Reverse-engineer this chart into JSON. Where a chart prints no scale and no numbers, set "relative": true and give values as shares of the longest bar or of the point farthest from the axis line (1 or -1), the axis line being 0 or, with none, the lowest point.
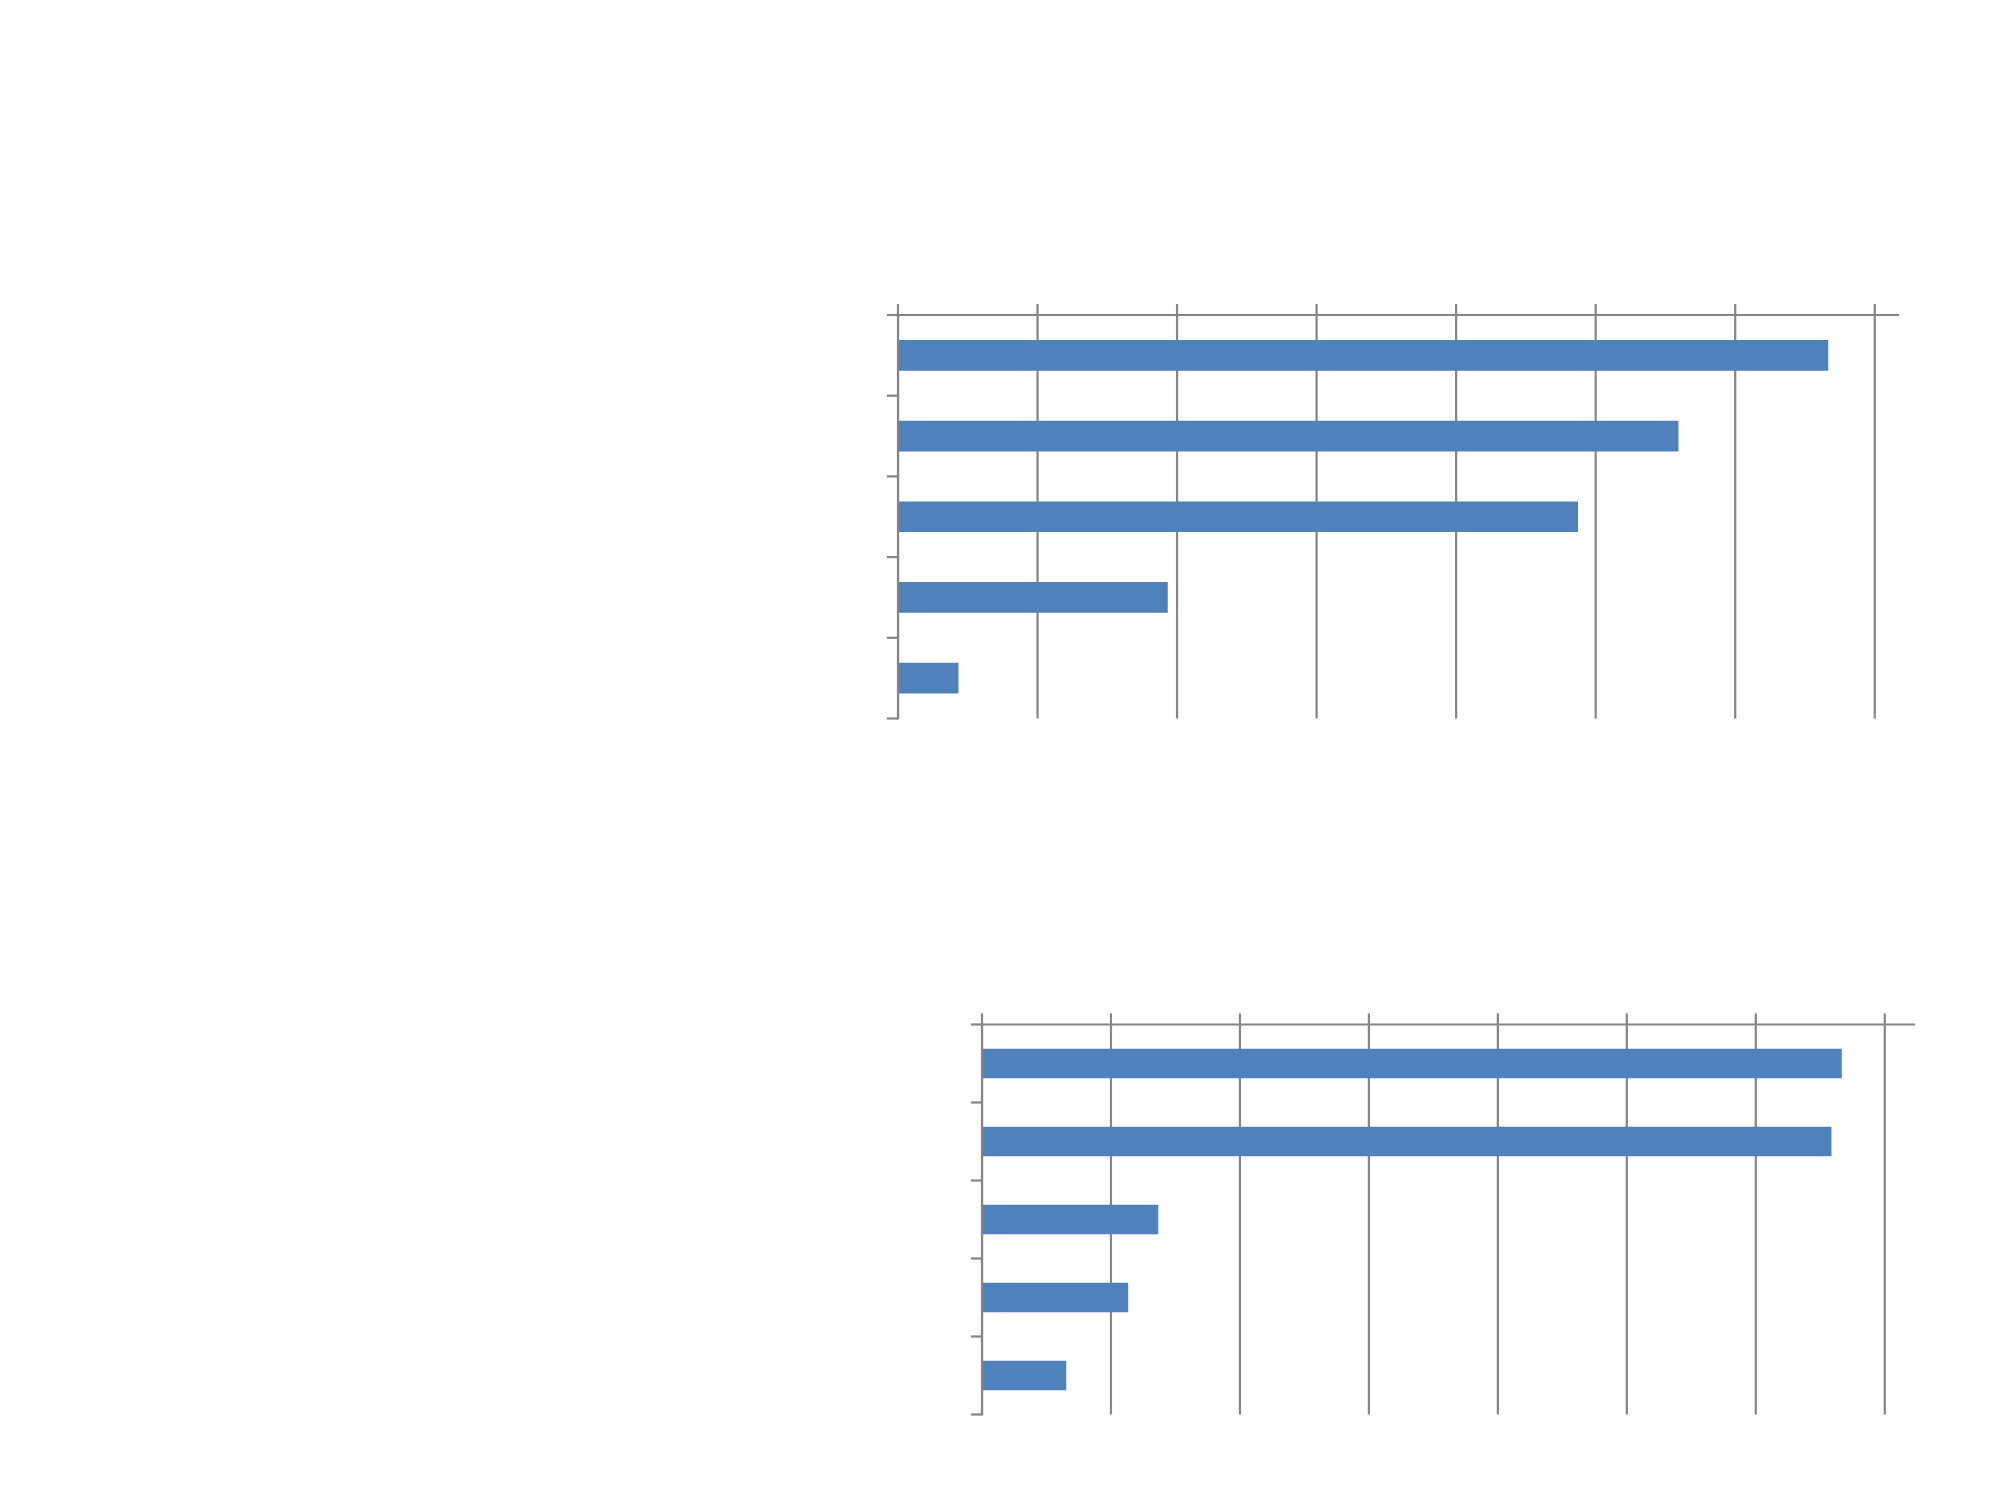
{
  "chart_data": [
    {
      "type": "bar",
      "orientation": "horizontal",
      "relative": true,
      "categories": [
        null,
        null,
        null,
        null,
        null
      ],
      "values": [
        1,
        0.839,
        0.731,
        0.29,
        0.065
      ],
      "color": "#4f81bd",
      "grid": "x",
      "tick_labels": false,
      "legend": false
    },
    {
      "type": "bar",
      "orientation": "horizontal",
      "relative": true,
      "categories": [
        null,
        null,
        null,
        null,
        null
      ],
      "values": [
        1,
        0.988,
        0.205,
        0.17,
        0.098
      ],
      "color": "#4f81bd",
      "grid": "x",
      "tick_labels": false,
      "legend": false
    }
  ]
}
